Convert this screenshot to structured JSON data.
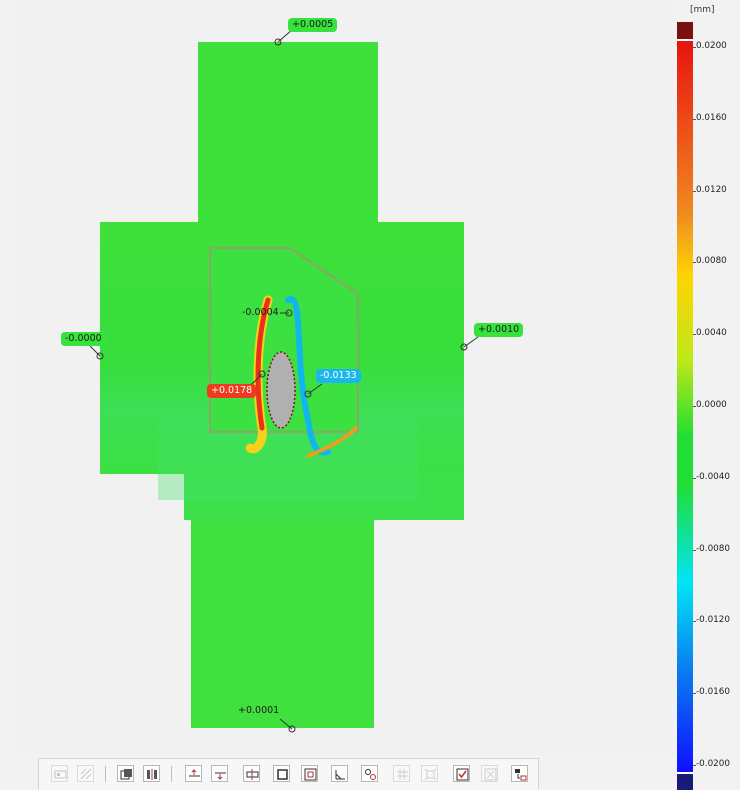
{
  "viewport": {
    "measurements": [
      {
        "id": "top",
        "label": "+0.0005",
        "style": "green"
      },
      {
        "id": "left",
        "label": "-0.0000",
        "style": "green"
      },
      {
        "id": "right",
        "label": "+0.0010",
        "style": "green"
      },
      {
        "id": "center",
        "label": "-0.0004",
        "style": "plain"
      },
      {
        "id": "max",
        "label": "+0.0178",
        "style": "red"
      },
      {
        "id": "min",
        "label": "-0.0133",
        "style": "blue"
      },
      {
        "id": "bottom",
        "label": "+0.0001",
        "style": "plain"
      }
    ]
  },
  "color_scale": {
    "unit": "[mm]",
    "ticks": [
      "0.0200",
      "0.0160",
      "0.0120",
      "0.0080",
      "0.0040",
      "0.0000",
      "-0.0040",
      "-0.0080",
      "-0.0120",
      "-0.0160",
      "-0.0200"
    ],
    "colors": {
      "over": "#7a1010",
      "high": "#e8140e",
      "mid_high": "#ffd400",
      "zero": "#22dd33",
      "mid_low": "#00e5f5",
      "low": "#1010ff",
      "under": "#1a1a7a"
    }
  },
  "toolbar": {
    "buttons": [
      {
        "name": "view-icon-button",
        "icon": "view-icon",
        "enabled": false
      },
      {
        "name": "hatch-icon-button",
        "icon": "hatch-icon",
        "enabled": false
      },
      {
        "name": "copy-view-button",
        "icon": "copy-view-icon",
        "enabled": true
      },
      {
        "name": "split-view-button",
        "icon": "split-view-icon",
        "enabled": true
      },
      {
        "name": "align-up-button",
        "icon": "align-up-icon",
        "enabled": true
      },
      {
        "name": "align-down-button",
        "icon": "align-down-icon",
        "enabled": true
      },
      {
        "name": "section-button",
        "icon": "section-icon",
        "enabled": true
      },
      {
        "name": "frame-button",
        "icon": "frame-icon",
        "enabled": true
      },
      {
        "name": "inner-frame-button",
        "icon": "inner-frame-icon",
        "enabled": true
      },
      {
        "name": "angle-button",
        "icon": "angle-icon",
        "enabled": true
      },
      {
        "name": "link-button",
        "icon": "link-icon",
        "enabled": true
      },
      {
        "name": "grid-button",
        "icon": "grid-icon",
        "enabled": false
      },
      {
        "name": "bounds-button",
        "icon": "bounds-icon",
        "enabled": false
      },
      {
        "name": "check-button",
        "icon": "checkbox-icon",
        "enabled": true
      },
      {
        "name": "uncheck-button",
        "icon": "uncheck-icon",
        "enabled": false
      },
      {
        "name": "arrange-button",
        "icon": "arrange-icon",
        "enabled": true
      }
    ]
  }
}
